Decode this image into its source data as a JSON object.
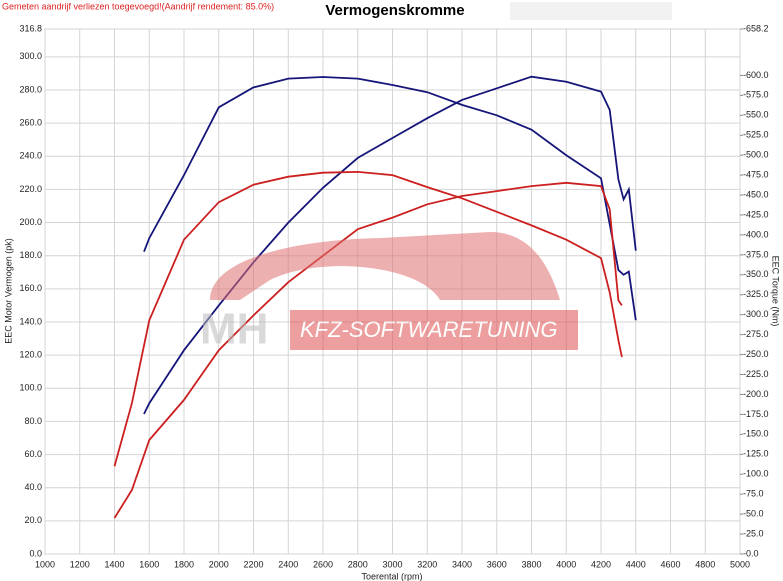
{
  "chart_data": {
    "type": "line",
    "title": "Vermogenskromme",
    "note": "Gemeten aandrijf verliezen toegevoegd!(Aandrijf rendement: 85.0%)",
    "watermark": {
      "logo": "MH",
      "brand": "KFZ-SOFTWARETUNING"
    },
    "x_label": "Toerental (rpm)",
    "y_label": "EEC Motor Vermogen (pk)",
    "y2_label": "EEC Torque (Nm)",
    "xlim": [
      1000,
      5000
    ],
    "xticks": [
      1000,
      1200,
      1400,
      1600,
      1800,
      2000,
      2200,
      2400,
      2600,
      2800,
      3000,
      3200,
      3400,
      3600,
      3800,
      4000,
      4200,
      4400,
      4600,
      4800,
      5000
    ],
    "ylim": [
      0,
      316.8
    ],
    "yticks": [
      {
        "value": 0,
        "label": "0.0"
      },
      {
        "value": 20,
        "label": "20.0"
      },
      {
        "value": 40,
        "label": "40.0"
      },
      {
        "value": 60,
        "label": "60.0"
      },
      {
        "value": 80,
        "label": "80.0"
      },
      {
        "value": 100,
        "label": "100.0"
      },
      {
        "value": 120,
        "label": "120.0"
      },
      {
        "value": 140,
        "label": "140.0"
      },
      {
        "value": 160,
        "label": "160.0"
      },
      {
        "value": 180,
        "label": "180.0"
      },
      {
        "value": 200,
        "label": "200.0"
      },
      {
        "value": 220,
        "label": "220.0"
      },
      {
        "value": 240,
        "label": "240.0"
      },
      {
        "value": 260,
        "label": "260.0"
      },
      {
        "value": 280,
        "label": "280.0"
      },
      {
        "value": 300,
        "label": "300.0"
      },
      316.8
    ],
    "y2lim": [
      0,
      658.2
    ],
    "y2ticks": [
      {
        "value": 0,
        "label": "-0.0"
      },
      {
        "value": 25,
        "label": "-25.0"
      },
      {
        "value": 50,
        "label": "-50.0"
      },
      {
        "value": 75,
        "label": "-75.0"
      },
      {
        "value": 100,
        "label": "-100.0"
      },
      {
        "value": 125,
        "label": "-125.0"
      },
      {
        "value": 150,
        "label": "-150.0"
      },
      {
        "value": 175,
        "label": "-175.0"
      },
      {
        "value": 200,
        "label": "-200.0"
      },
      {
        "value": 225,
        "label": "-225.0"
      },
      {
        "value": 250,
        "label": "-250.0"
      },
      {
        "value": 275,
        "label": "-275.0"
      },
      {
        "value": 300,
        "label": "-300.0"
      },
      {
        "value": 325,
        "label": "-325.0"
      },
      {
        "value": 350,
        "label": "-350.0"
      },
      {
        "value": 375,
        "label": "-375.0"
      },
      {
        "value": 400,
        "label": "-400.0"
      },
      {
        "value": 425,
        "label": "-425.0"
      },
      {
        "value": 450,
        "label": "-450.0"
      },
      {
        "value": 475,
        "label": "-475.0"
      },
      {
        "value": 500,
        "label": "-500.0"
      },
      {
        "value": 525,
        "label": "-525.0"
      },
      {
        "value": 550,
        "label": "-550.0"
      },
      {
        "value": 575,
        "label": "-575.0"
      },
      {
        "value": 600,
        "label": "-600.0"
      },
      {
        "value": 658.2,
        "label": "-658.2"
      }
    ],
    "grid": true,
    "series": [
      {
        "color": "#15157a",
        "x": [
          1570,
          1600,
          1800,
          2000,
          2200,
          2400,
          2600,
          2800,
          3000,
          3200,
          3400,
          3600,
          3800,
          4000,
          4200,
          4250,
          4300,
          4330,
          4360,
          4400
        ],
        "values": [
          84.5,
          91,
          123,
          150,
          176,
          200,
          221,
          239,
          251,
          263,
          274,
          281,
          288,
          285,
          279,
          268,
          226,
          214,
          220,
          183
        ]
      },
      {
        "color": "#15157a",
        "axis": "y2",
        "x": [
          1570,
          1600,
          1800,
          2000,
          2200,
          2400,
          2600,
          2800,
          3000,
          3200,
          3400,
          3600,
          3800,
          4000,
          4200,
          4300,
          4330,
          4360,
          4400
        ],
        "values": [
          379,
          396,
          475,
          560,
          585,
          596,
          598,
          596,
          588,
          579,
          563,
          550,
          532,
          500,
          471,
          356,
          350,
          354,
          293
        ]
      },
      {
        "color": "#cc1f1f",
        "x": [
          1400,
          1500,
          1600,
          1800,
          2000,
          2200,
          2400,
          2600,
          2800,
          3000,
          3200,
          3400,
          3600,
          3800,
          4000,
          4200,
          4250,
          4300,
          4320
        ],
        "values": [
          21.7,
          38.6,
          68.8,
          93,
          123,
          144,
          164,
          180,
          196,
          203,
          211,
          216,
          219,
          222,
          224,
          222,
          208,
          153,
          150
        ]
      },
      {
        "color": "#cc1f1f",
        "axis": "y2",
        "x": [
          1400,
          1500,
          1600,
          1800,
          2000,
          2200,
          2400,
          2600,
          2800,
          3000,
          3200,
          3400,
          3600,
          3800,
          4000,
          4200,
          4250,
          4300,
          4320
        ],
        "values": [
          110,
          189,
          293,
          394,
          441,
          463,
          473,
          478,
          479,
          475,
          460,
          446,
          429,
          412,
          394,
          371,
          328,
          268,
          247
        ]
      }
    ]
  }
}
